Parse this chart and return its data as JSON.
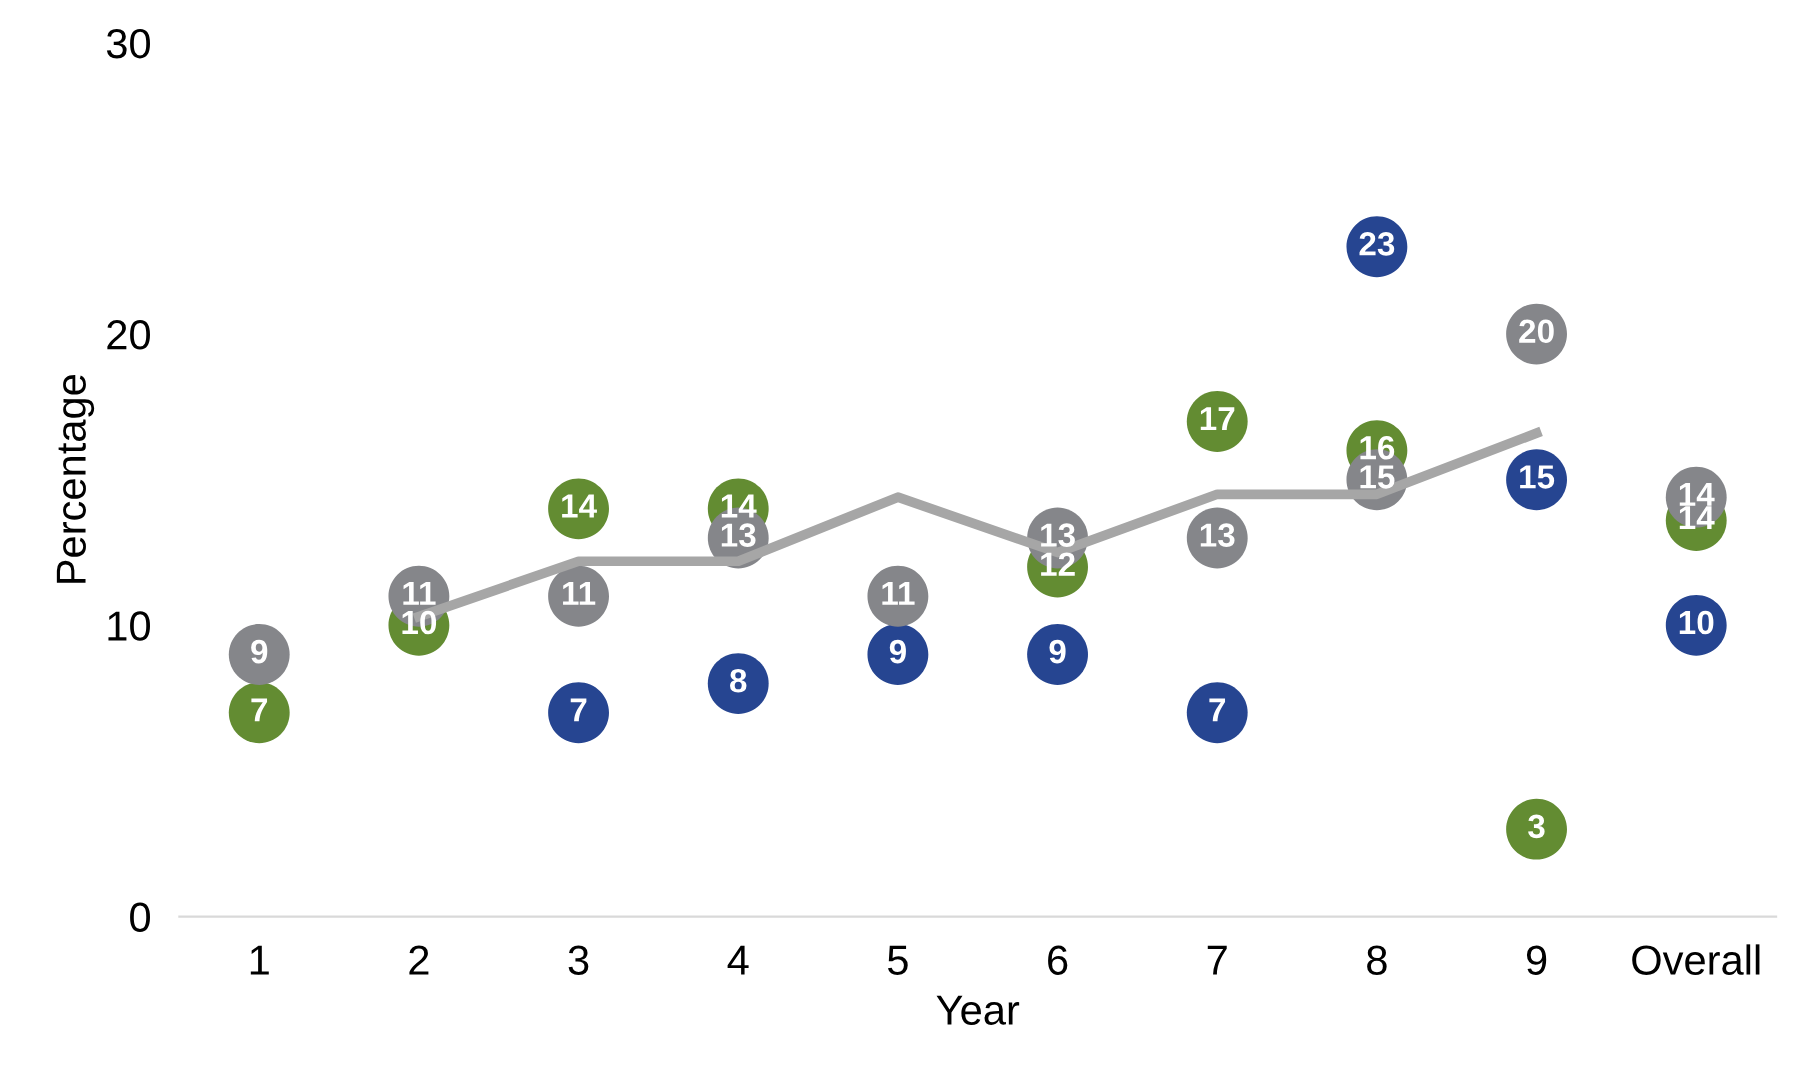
{
  "chart_data": {
    "type": "scatter",
    "xlabel": "Year",
    "ylabel": "Percentage",
    "categories": [
      "1",
      "2",
      "3",
      "4",
      "5",
      "6",
      "7",
      "8",
      "9",
      "Overall"
    ],
    "series": [
      {
        "type": "line",
        "color": "#a6a6a6",
        "marker": "none",
        "values": [
          null,
          10.3,
          12.2,
          12.2,
          14.4,
          12.5,
          14.5,
          14.5,
          16.6,
          null
        ]
      },
      {
        "color": "#264591",
        "values": [
          null,
          null,
          7,
          8,
          9,
          9,
          7,
          23,
          15,
          10
        ],
        "value_labels": [
          null,
          null,
          "7",
          "8",
          "9",
          "9",
          "7",
          "23",
          "15",
          "10"
        ]
      },
      {
        "color": "#638c32",
        "values": [
          7,
          10,
          14,
          14,
          null,
          12,
          17,
          16,
          3,
          13.6
        ],
        "value_labels": [
          "7",
          "10",
          "14",
          "14",
          null,
          "12",
          "17",
          "16",
          "3",
          "14"
        ]
      },
      {
        "color": "#85868a",
        "values": [
          9,
          11,
          11,
          13,
          11,
          13,
          13,
          15,
          20,
          14.4
        ],
        "value_labels": [
          "9",
          "11",
          "11",
          "13",
          "11",
          "13",
          "13",
          "15",
          "20",
          "14"
        ]
      }
    ],
    "marker": "circle",
    "ylim": [
      0,
      30
    ],
    "yticks": [
      0,
      10,
      20,
      30
    ],
    "grid": false,
    "legend": false
  }
}
